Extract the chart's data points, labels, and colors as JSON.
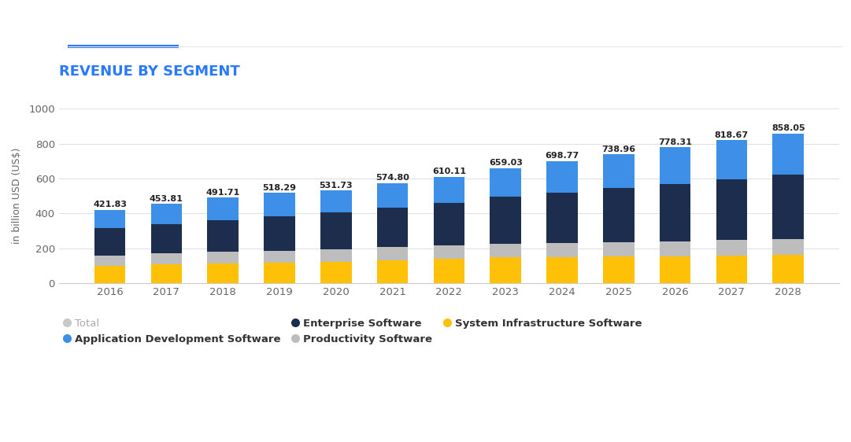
{
  "title": "REVENUE BY SEGMENT",
  "ylabel": "in billion USD (US$)",
  "years": [
    2016,
    2017,
    2018,
    2019,
    2020,
    2021,
    2022,
    2023,
    2024,
    2025,
    2026,
    2027,
    2028
  ],
  "totals": [
    421.83,
    453.81,
    491.71,
    518.29,
    531.73,
    574.8,
    610.11,
    659.03,
    698.77,
    738.96,
    778.31,
    818.67,
    858.05
  ],
  "segments": {
    "system_infrastructure": [
      100,
      108,
      112,
      118,
      124,
      132,
      140,
      148,
      150,
      153,
      156,
      158,
      162
    ],
    "productivity": [
      58,
      63,
      68,
      68,
      73,
      75,
      77,
      80,
      82,
      83,
      86,
      90,
      92
    ],
    "enterprise": [
      157,
      168,
      183,
      198,
      208,
      228,
      245,
      267,
      288,
      308,
      328,
      348,
      368
    ]
  },
  "colors": {
    "system_infrastructure": "#FFC107",
    "productivity": "#BDBDBD",
    "enterprise": "#1C2D4E",
    "application_development": "#3D8FE8"
  },
  "legend": {
    "total_label": "Total",
    "total_color": "#C8C8C8",
    "app_dev_label": "Application Development Software",
    "app_dev_color": "#3D8FE8",
    "enterprise_label": "Enterprise Software",
    "enterprise_color": "#1C2D4E",
    "productivity_label": "Productivity Software",
    "productivity_color": "#BDBDBD",
    "system_label": "System Infrastructure Software",
    "system_color": "#FFC107"
  },
  "ylim": [
    0,
    1000
  ],
  "yticks": [
    0,
    200,
    400,
    600,
    800,
    1000
  ],
  "background_color": "#FFFFFF",
  "grid_color": "#E0E0E0",
  "title_color": "#2979FF",
  "underline_color": "#2979FF",
  "axis_line_color": "#CCCCCC",
  "tick_label_color": "#666666",
  "bar_width": 0.55
}
